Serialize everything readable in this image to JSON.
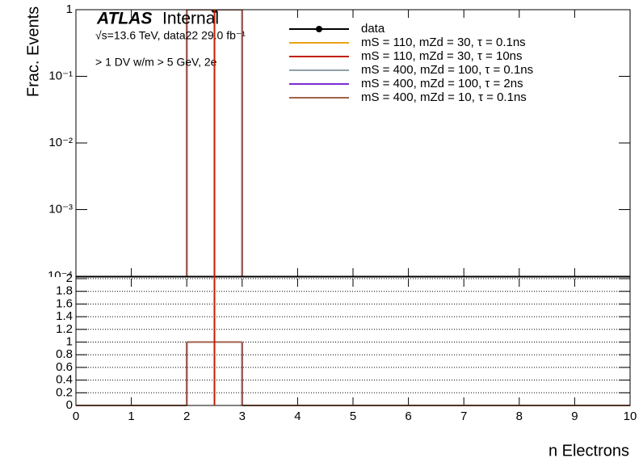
{
  "chart_data": [
    {
      "type": "histogram",
      "y_label": "Frac. Events",
      "log_y": true,
      "experiment": "ATLAS",
      "status": "Internal",
      "energy_label": "√s=13.6 TeV, data22 29.0 fb⁻¹",
      "selection_label": "> 1 DV w/m > 5 GeV, 2e",
      "bins": [
        0,
        1,
        2,
        3,
        4,
        5,
        6,
        7,
        8,
        9,
        10
      ],
      "xlim": [
        0,
        10
      ],
      "ylim": [
        0.0001,
        1
      ],
      "yticks": [
        1,
        {
          "value": 0.1,
          "label": "10⁻¹"
        },
        {
          "value": 0.01,
          "label": "10⁻²"
        },
        {
          "value": 0.001,
          "label": "10⁻³"
        },
        {
          "value": 0.0001,
          "label": "10⁻⁴"
        }
      ],
      "series": [
        {
          "name": "data",
          "color": "#000000",
          "draw": "points",
          "values": [
            0,
            0,
            1,
            0,
            0,
            0,
            0,
            0,
            0,
            0
          ]
        },
        {
          "name": "mS = 110, mZd = 30, τ = 0.1ns",
          "color": "#e8a317",
          "draw": "step",
          "values": [
            0,
            0,
            1,
            0,
            0,
            0,
            0,
            0,
            0,
            0
          ]
        },
        {
          "name": "mS = 110, mZd = 30, τ = 10ns",
          "color": "#c41e00",
          "draw": "step",
          "values": [
            0,
            0,
            1,
            0,
            0,
            0,
            0,
            0,
            0,
            0
          ]
        },
        {
          "name": "mS = 400, mZd = 100, τ = 0.1ns",
          "color": "#8fa0a8",
          "draw": "step",
          "values": [
            0,
            0,
            1,
            0,
            0,
            0,
            0,
            0,
            0,
            0
          ]
        },
        {
          "name": "mS = 400, mZd = 100, τ = 2ns",
          "color": "#7a2bd6",
          "draw": "step",
          "values": [
            0,
            0,
            1,
            0,
            0,
            0,
            0,
            0,
            0,
            0
          ]
        },
        {
          "name": "mS = 400, mZd = 10, τ = 0.1ns",
          "color": "#a0624a",
          "draw": "step",
          "values": [
            0,
            0,
            1,
            0,
            0,
            0,
            0,
            0,
            0,
            0
          ]
        }
      ]
    },
    {
      "type": "histogram",
      "x_label": "n Electrons",
      "grid": true,
      "bins": [
        0,
        1,
        2,
        3,
        4,
        5,
        6,
        7,
        8,
        9,
        10
      ],
      "xlim": [
        0,
        10
      ],
      "ylim": [
        0,
        2
      ],
      "xticks": [
        0,
        1,
        2,
        3,
        4,
        5,
        6,
        7,
        8,
        9,
        10
      ],
      "yticks": [
        0,
        0.2,
        0.4,
        0.6,
        0.8,
        1,
        1.2,
        1.4,
        1.6,
        1.8,
        2
      ],
      "series": [
        {
          "color": "#e8a317",
          "draw": "step",
          "values": [
            0,
            0,
            1,
            0,
            0,
            0,
            0,
            0,
            0,
            0
          ]
        },
        {
          "color": "#c41e00",
          "draw": "step",
          "values": [
            0,
            0,
            1,
            0,
            0,
            0,
            0,
            0,
            0,
            0
          ]
        },
        {
          "color": "#8fa0a8",
          "draw": "step",
          "values": [
            0,
            0,
            1,
            0,
            0,
            0,
            0,
            0,
            0,
            0
          ]
        },
        {
          "color": "#7a2bd6",
          "draw": "step",
          "values": [
            0,
            0,
            1,
            0,
            0,
            0,
            0,
            0,
            0,
            0
          ]
        },
        {
          "color": "#a0624a",
          "draw": "step",
          "values": [
            0,
            0,
            1,
            0,
            0,
            0,
            0,
            0,
            0,
            0
          ]
        }
      ]
    }
  ]
}
